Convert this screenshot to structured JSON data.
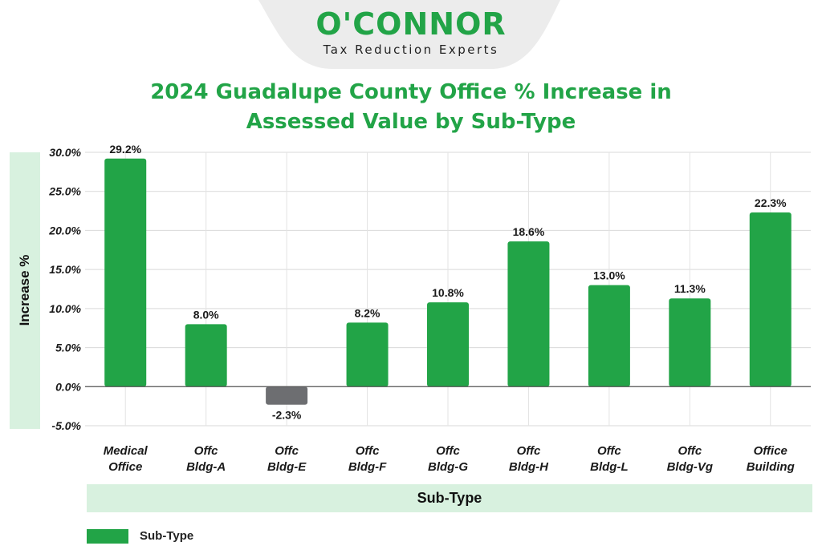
{
  "logo": {
    "name": "O'CONNOR",
    "tagline": "Tax Reduction Experts"
  },
  "colors": {
    "brand_green": "#22a447",
    "negative_gray": "#6d6e71",
    "band_green": "#d8f1df"
  },
  "chart_data": {
    "type": "bar",
    "title": "2024 Guadalupe County Office % Increase in Assessed Value by Sub-Type",
    "title_lines": [
      "2024 Guadalupe County Office % Increase in",
      "Assessed Value by Sub-Type"
    ],
    "xlabel": "Sub-Type",
    "ylabel": "Increase %",
    "categories": [
      [
        "Medical",
        "Office"
      ],
      [
        "Offc",
        "Bldg-A"
      ],
      [
        "Offc",
        "Bldg-E"
      ],
      [
        "Offc",
        "Bldg-F"
      ],
      [
        "Offc",
        "Bldg-G"
      ],
      [
        "Offc",
        "Bldg-H"
      ],
      [
        "Offc",
        "Bldg-L"
      ],
      [
        "Offc",
        "Bldg-Vg"
      ],
      [
        "Office",
        "Building"
      ]
    ],
    "series": [
      {
        "name": "Sub-Type",
        "values": [
          29.2,
          8.0,
          -2.3,
          8.2,
          10.8,
          18.6,
          13.0,
          11.3,
          22.3
        ],
        "labels": [
          "29.2%",
          "8.0%",
          "-2.3%",
          "8.2%",
          "10.8%",
          "18.6%",
          "13.0%",
          "11.3%",
          "22.3%"
        ]
      }
    ],
    "ylim": [
      -5,
      30
    ],
    "yticks": [
      30,
      25,
      20,
      15,
      10,
      5,
      0,
      -5
    ],
    "ytick_labels": [
      "30.0%",
      "25.0%",
      "20.0%",
      "15.0%",
      "10.0%",
      "5.0%",
      "0.0%",
      "-5.0%"
    ],
    "grid": true,
    "legend_position": "bottom-left"
  }
}
